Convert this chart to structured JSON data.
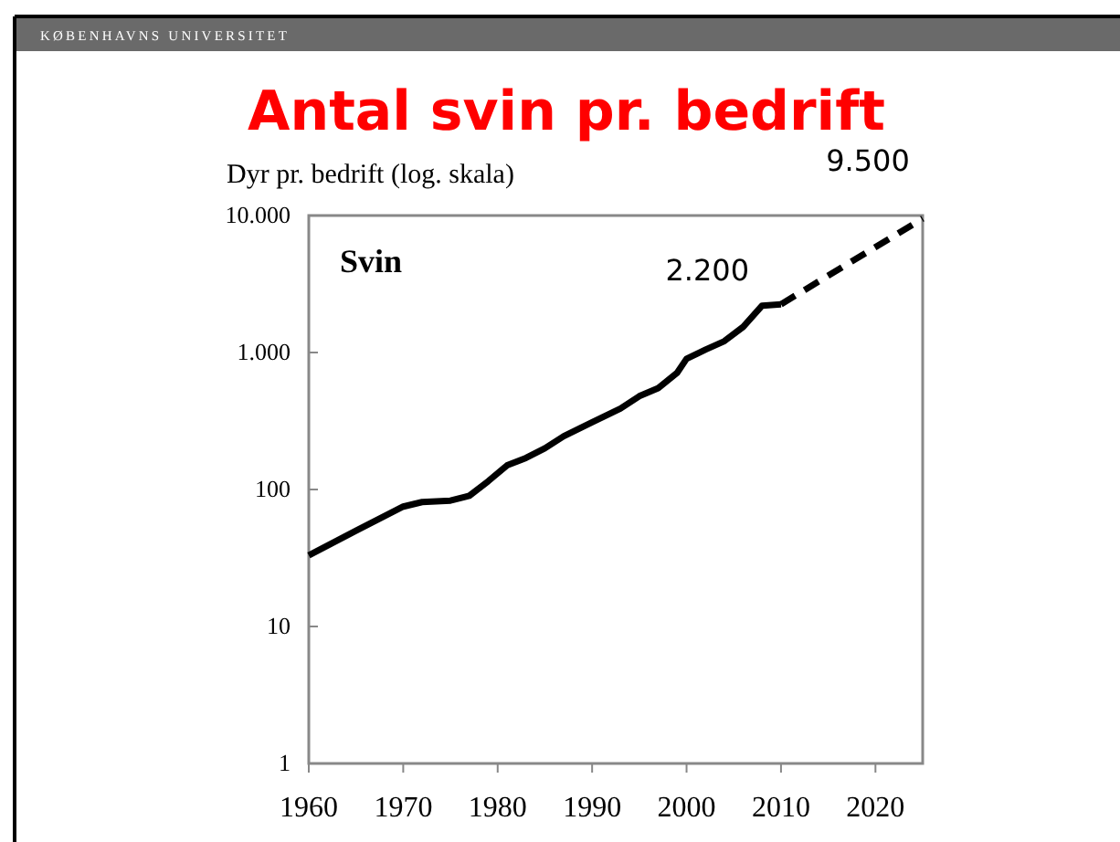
{
  "chart_data": {
    "type": "line",
    "title": "Antal svin pr. bedrift",
    "ylabel": "Dyr pr. bedrift (log. skala)",
    "log": true,
    "xlim": [
      1960,
      2025
    ],
    "xticks": [
      1960,
      1970,
      1980,
      1990,
      2000,
      2010,
      2020
    ],
    "ylim": [
      1,
      10000
    ],
    "yticks": [
      1,
      10,
      100,
      {
        "value": 1000,
        "label": "1.000"
      },
      {
        "value": 10000,
        "label": "10.000"
      }
    ],
    "marker": "none",
    "series": [
      {
        "color": "#000000",
        "line_style": "solid",
        "x": [
          1960,
          1965,
          1970,
          1972,
          1975,
          1977,
          1979,
          1981,
          1983,
          1985,
          1987,
          1990,
          1993,
          1995,
          1997,
          1999,
          2000,
          2002,
          2004,
          2006,
          2008,
          2010
        ],
        "values": [
          33,
          50,
          75,
          81,
          83,
          90,
          115,
          150,
          170,
          200,
          245,
          310,
          390,
          480,
          550,
          710,
          900,
          1050,
          1210,
          1540,
          2200,
          2250
        ]
      },
      {
        "color": "#000000",
        "line_style": "dashed",
        "x": [
          2010,
          2025
        ],
        "values": [
          2250,
          9500
        ]
      }
    ],
    "annotations": [
      "KØBENHAVNS UNIVERSITET",
      "Svin",
      {
        "text": "2.200",
        "x": 2008,
        "y": 2200
      },
      {
        "text": "9.500",
        "x": 2025,
        "y": 9500
      }
    ]
  }
}
